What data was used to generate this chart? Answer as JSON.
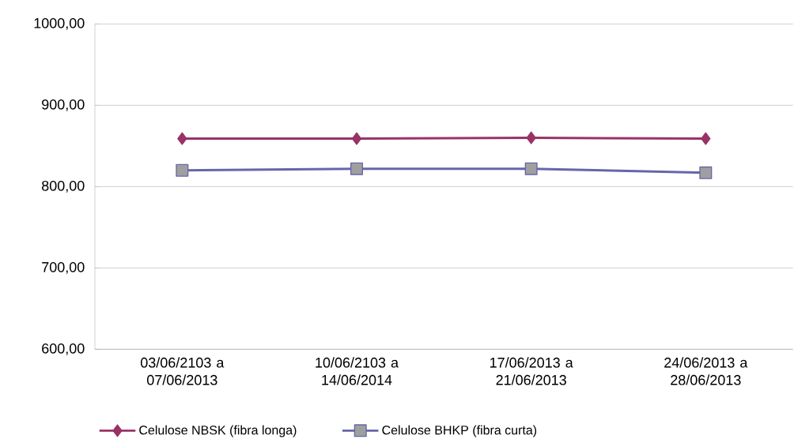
{
  "chart_data": {
    "type": "line",
    "categories": [
      "03/06/2103 a 07/06/2013",
      "10/06/2103 a 14/06/2014",
      "17/06/2013 a 21/06/2013",
      "24/06/2013 a 28/06/2013"
    ],
    "series": [
      {
        "name": "Celulose NBSK (fibra longa)",
        "color": "#993366",
        "marker": "diamond",
        "values": [
          859,
          859,
          860,
          859
        ]
      },
      {
        "name": "Celulose BHKP (fibra curta)",
        "color": "#6666aa",
        "marker": "square",
        "values": [
          820,
          822,
          822,
          817
        ]
      }
    ],
    "ylim": [
      600,
      1000
    ],
    "yticks": [
      {
        "value": 600,
        "label": "600,00"
      },
      {
        "value": 700,
        "label": "700,00"
      },
      {
        "value": 800,
        "label": "800,00"
      },
      {
        "value": 900,
        "label": "900,00"
      },
      {
        "value": 1000,
        "label": "1000,00"
      }
    ],
    "grid": "y",
    "legend": "bottom",
    "line_style": "solid"
  }
}
